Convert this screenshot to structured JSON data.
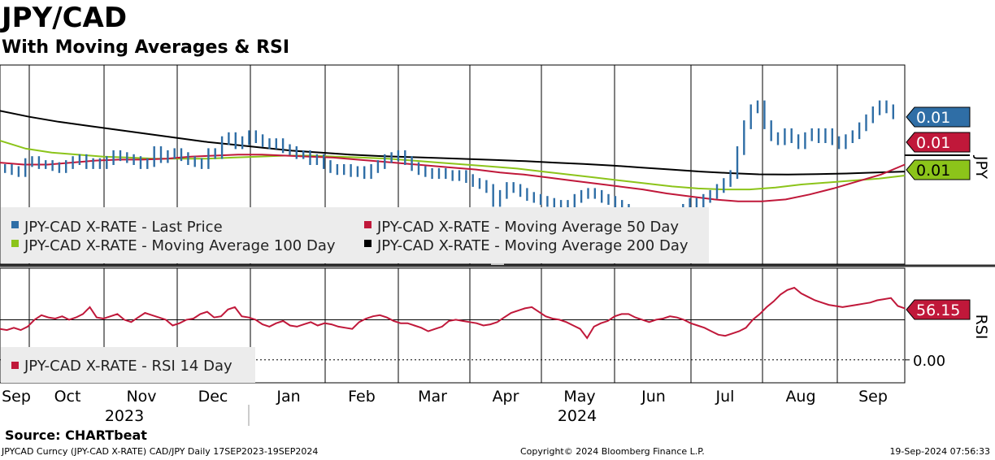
{
  "header": {
    "title": "JPY/CAD",
    "subtitle": "With Moving Averages & RSI"
  },
  "chart_data": {
    "type": "line",
    "title": "JPY/CAD",
    "subtitle": "With Moving Averages & RSI",
    "price_panel": {
      "axis_label": "JPY",
      "x_start": "2023-09-17",
      "x_end": "2024-09-19",
      "series": [
        {
          "name": "JPY-CAD X-RATE - Last Price",
          "color": "#2f6ea6",
          "style": "bars",
          "last_value_label": "0.01",
          "values": [
            48,
            47,
            46,
            51,
            52,
            50,
            50,
            49,
            48,
            50,
            52,
            53,
            50,
            51,
            50,
            52,
            55,
            54,
            53,
            52,
            50,
            51,
            57,
            53,
            55,
            56,
            54,
            52,
            51,
            50,
            56,
            55,
            62,
            64,
            60,
            62,
            65,
            63,
            61,
            60,
            61,
            58,
            57,
            55,
            55,
            52,
            53,
            50,
            48,
            47,
            48,
            46,
            47,
            45,
            48,
            50,
            53,
            54,
            55,
            52,
            49,
            47,
            46,
            45,
            46,
            45,
            44,
            45,
            43,
            41,
            40,
            38,
            31,
            35,
            39,
            38,
            36,
            34,
            33,
            32,
            31,
            30,
            30,
            29,
            33,
            35,
            36,
            35,
            33,
            32,
            30,
            28,
            25,
            22,
            20,
            21,
            19,
            18,
            17,
            22,
            28,
            31,
            30,
            33,
            35,
            38,
            41,
            45,
            57,
            70,
            78,
            80,
            70,
            64,
            62,
            66,
            63,
            60,
            64,
            66,
            63,
            66,
            62,
            60,
            63,
            65,
            69,
            73,
            77,
            80,
            78,
            75
          ]
        },
        {
          "name": "JPY-CAD X-RATE - Moving Average 50 Day",
          "color": "#c0183a",
          "style": "line",
          "last_value_label": "0.01",
          "values": [
            51,
            50,
            50,
            51,
            52,
            52.5,
            52.5,
            53,
            54,
            54.5,
            55,
            55,
            54.5,
            54,
            53.5,
            52.5,
            51.5,
            50.5,
            49.5,
            48.5,
            47.5,
            46,
            45,
            43.5,
            42,
            40.5,
            39,
            37.5,
            35.5,
            34,
            32.5,
            31.5,
            31.5,
            32.5,
            35,
            38,
            41.5,
            45,
            50
          ]
        },
        {
          "name": "JPY-CAD X-RATE - Moving Average 100 Day",
          "color": "#8cc41a",
          "style": "line",
          "last_value_label": "0.01",
          "values": [
            62,
            58,
            56,
            55,
            54,
            53.5,
            53,
            53,
            53,
            53.5,
            54,
            54.5,
            54.5,
            54,
            53.5,
            53,
            52,
            51,
            50,
            49,
            48,
            46.5,
            45,
            43.5,
            42,
            40.5,
            39,
            38,
            37.5,
            37.5,
            38.5,
            40,
            41,
            42,
            43,
            44.5
          ]
        },
        {
          "name": "JPY-CAD X-RATE - Moving Average 200 Day",
          "color": "#000000",
          "style": "line",
          "last_value_label": "",
          "values": [
            77,
            74,
            71.5,
            69.5,
            67.5,
            65.5,
            63.5,
            61.5,
            60,
            58.5,
            57,
            56,
            55,
            54.3,
            53.8,
            53.3,
            52.8,
            52.3,
            51.7,
            51,
            50.3,
            49.5,
            48.5,
            47.5,
            46.5,
            45.7,
            45.1,
            45,
            45.2,
            45.5,
            46,
            46.5
          ]
        }
      ]
    },
    "rsi_panel": {
      "axis_label": "RSI",
      "tick_labels": [
        "0.00"
      ],
      "series": [
        {
          "name": "JPY-CAD X-RATE - RSI 14 Day",
          "color": "#c0183a",
          "last_value_label": "56.15",
          "values": [
            47,
            46,
            48,
            46,
            49,
            55,
            59,
            57,
            56,
            58,
            55,
            57,
            60,
            66,
            57,
            56,
            58,
            60,
            55,
            53,
            57,
            61,
            59,
            57,
            55,
            50,
            52,
            55,
            56,
            60,
            62,
            57,
            58,
            64,
            66,
            58,
            57,
            55,
            51,
            49,
            52,
            54,
            50,
            49,
            51,
            53,
            50,
            52,
            51,
            49,
            48,
            47,
            53,
            56,
            58,
            59,
            57,
            54,
            52,
            52,
            50,
            48,
            45,
            47,
            49,
            54,
            55,
            54,
            53,
            52,
            50,
            51,
            53,
            57,
            61,
            63,
            65,
            66,
            62,
            58,
            56,
            55,
            53,
            50,
            47,
            39,
            49,
            52,
            54,
            58,
            60,
            60,
            57,
            55,
            53,
            55,
            56,
            58,
            57,
            55,
            52,
            50,
            48,
            45,
            42,
            41,
            43,
            45,
            48,
            55,
            60,
            66,
            71,
            77,
            81,
            83,
            78,
            75,
            72,
            70,
            68,
            67,
            66,
            67,
            68,
            69,
            70,
            72,
            73,
            74,
            67,
            65
          ]
        }
      ]
    },
    "x_axis": {
      "month_labels": [
        "Sep",
        "Oct",
        "Nov",
        "Dec",
        "Jan",
        "Feb",
        "Mar",
        "Apr",
        "May",
        "Jun",
        "Jul",
        "Aug",
        "Sep"
      ],
      "year_labels": [
        "2023",
        "2024"
      ]
    }
  },
  "footer": {
    "source": "Source:  CHARTbeat",
    "ticker_line": "JPYCAD Curncy (JPY-CAD X-RATE) CAD/JPY  Daily 17SEP2023-19SEP2024",
    "copyright": "Copyright© 2024 Bloomberg Finance L.P.",
    "timestamp": "19-Sep-2024 07:56:33"
  }
}
